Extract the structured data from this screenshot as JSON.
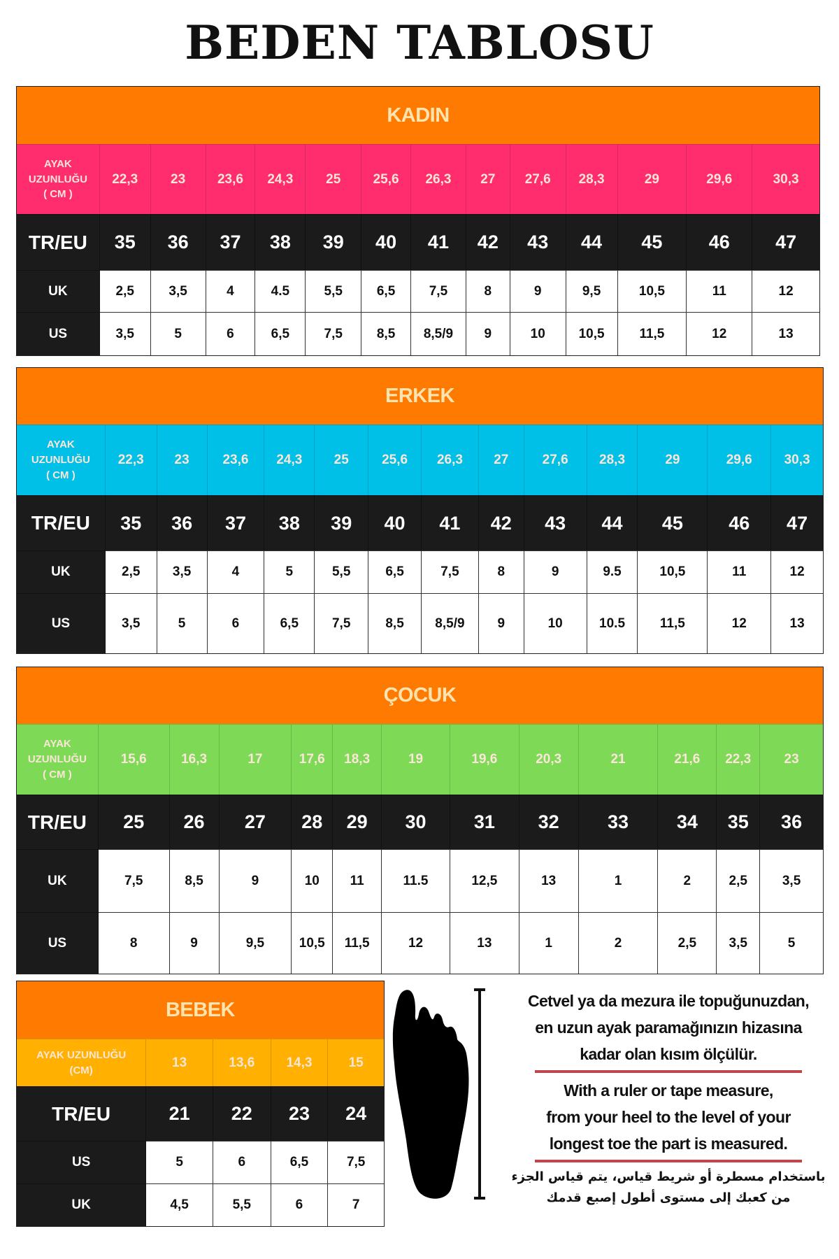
{
  "title": "BEDEN TABLOSU",
  "colors": {
    "header": "#ff7a00",
    "kadin": "#ff2d6e",
    "erkek": "#00c0e8",
    "cocuk": "#7ed957",
    "bebek": "#ffb000",
    "dark": "#1b1b1b"
  },
  "sections": [
    {
      "name": "KADIN",
      "color_key": "kadin",
      "rows": [
        {
          "label": "AYAK\nUZUNLUĞU\n( CM )",
          "values": [
            "22,3",
            "23",
            "23,6",
            "24,3",
            "25",
            "25,6",
            "26,3",
            "27",
            "27,6",
            "28,3",
            "29",
            "29,6",
            "30,3"
          ]
        },
        {
          "label": "TR/EU",
          "values": [
            "35",
            "36",
            "37",
            "38",
            "39",
            "40",
            "41",
            "42",
            "43",
            "44",
            "45",
            "46",
            "47"
          ]
        },
        {
          "label": "UK",
          "values": [
            "2,5",
            "3,5",
            "4",
            "4.5",
            "5,5",
            "6,5",
            "7,5",
            "8",
            "9",
            "9,5",
            "10,5",
            "11",
            "12"
          ]
        },
        {
          "label": "US",
          "values": [
            "3,5",
            "5",
            "6",
            "6,5",
            "7,5",
            "8,5",
            "8,5/9",
            "9",
            "10",
            "10,5",
            "11,5",
            "12",
            "13"
          ]
        }
      ]
    },
    {
      "name": "ERKEK",
      "color_key": "erkek",
      "rows": [
        {
          "label": "AYAK\nUZUNLUĞU\n( CM )",
          "values": [
            "22,3",
            "23",
            "23,6",
            "24,3",
            "25",
            "25,6",
            "26,3",
            "27",
            "27,6",
            "28,3",
            "29",
            "29,6",
            "30,3"
          ]
        },
        {
          "label": "TR/EU",
          "values": [
            "35",
            "36",
            "37",
            "38",
            "39",
            "40",
            "41",
            "42",
            "43",
            "44",
            "45",
            "46",
            "47"
          ]
        },
        {
          "label": "UK",
          "values": [
            "2,5",
            "3,5",
            "4",
            "5",
            "5,5",
            "6,5",
            "7,5",
            "8",
            "9",
            "9.5",
            "10,5",
            "11",
            "12"
          ]
        },
        {
          "label": "US",
          "values": [
            "3,5",
            "5",
            "6",
            "6,5",
            "7,5",
            "8,5",
            "8,5/9",
            "9",
            "10",
            "10.5",
            "11,5",
            "12",
            "13"
          ]
        }
      ]
    },
    {
      "name": "ÇOCUK",
      "color_key": "cocuk",
      "rows": [
        {
          "label": "AYAK\nUZUNLUĞU\n( CM )",
          "values": [
            "15,6",
            "16,3",
            "17",
            "17,6",
            "18,3",
            "19",
            "19,6",
            "20,3",
            "21",
            "21,6",
            "22,3",
            "23"
          ]
        },
        {
          "label": "TR/EU",
          "values": [
            "25",
            "26",
            "27",
            "28",
            "29",
            "30",
            "31",
            "32",
            "33",
            "34",
            "35",
            "36"
          ]
        },
        {
          "label": "UK",
          "values": [
            "7,5",
            "8,5",
            "9",
            "10",
            "11",
            "11.5",
            "12,5",
            "13",
            "1",
            "2",
            "2,5",
            "3,5"
          ]
        },
        {
          "label": "US",
          "values": [
            "8",
            "9",
            "9,5",
            "10,5",
            "11,5",
            "12",
            "13",
            "1",
            "2",
            "2,5",
            "3,5",
            "5"
          ]
        }
      ]
    },
    {
      "name": "BEBEK",
      "color_key": "bebek",
      "rows": [
        {
          "label": "AYAK UZUNLUĞU\n(CM)",
          "values": [
            "13",
            "13,6",
            "14,3",
            "15"
          ]
        },
        {
          "label": "TR/EU",
          "values": [
            "21",
            "22",
            "23",
            "24"
          ]
        },
        {
          "label": "US",
          "values": [
            "5",
            "6",
            "6,5",
            "7,5"
          ]
        },
        {
          "label": "UK",
          "values": [
            "4,5",
            "5,5",
            "6",
            "7"
          ]
        }
      ]
    }
  ],
  "instructions": {
    "tr": [
      "Cetvel ya da mezura ile topuğunuzdan,",
      "en uzun ayak paramağınızın hizasına",
      "kadar olan kısım ölçülür."
    ],
    "en": [
      "With a ruler or tape measure,",
      "from your heel to the level of your",
      "longest toe the part is measured."
    ],
    "ar": [
      "باستخدام مسطرة أو شريط قياس، يتم قياس الجزء",
      "من كعبك إلى مستوى أطول إصبع قدمك"
    ]
  },
  "icons": {
    "foot": "foot-silhouette-icon",
    "ruler": "measure-ruler-icon"
  }
}
